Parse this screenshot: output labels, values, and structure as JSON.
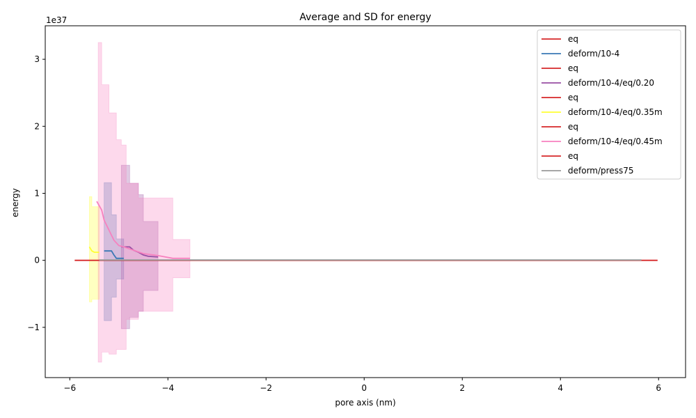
{
  "chart_data": {
    "type": "line",
    "title": "Average and SD for energy",
    "xlabel": "pore axis (nm)",
    "ylabel": "energy",
    "y_scale_label": "1e37",
    "xlim": [
      -6.5,
      6.55
    ],
    "ylim": [
      -1.75,
      3.5
    ],
    "x_ticks": [
      -6,
      -4,
      -2,
      0,
      2,
      4,
      6
    ],
    "x_tick_labels": [
      "−6",
      "−4",
      "−2",
      "0",
      "2",
      "4",
      "6"
    ],
    "y_ticks": [
      -1,
      0,
      1,
      2,
      3
    ],
    "y_tick_labels": [
      "−1",
      "0",
      "1",
      "2",
      "3"
    ],
    "legend_position": "top-right",
    "grid": false,
    "series": [
      {
        "name": "eq",
        "color": "#d62728",
        "x": [
          -5.9,
          5.98
        ],
        "y": [
          0,
          0
        ]
      },
      {
        "name": "deform/10-4",
        "color": "#3a78b5",
        "x": [
          -5.3,
          -5.15,
          -5.1,
          -5.05,
          -4.9
        ],
        "y": [
          0.14,
          0.14,
          0.08,
          0.03,
          0.03
        ],
        "band": {
          "x": [
            -5.3,
            -5.15,
            -5.15,
            -5.05,
            -5.05,
            -4.9
          ],
          "upper": [
            1.16,
            1.16,
            0.68,
            0.68,
            0.32,
            0.32
          ],
          "lower": [
            -0.9,
            -0.9,
            -0.55,
            -0.55,
            -0.28,
            -0.28
          ]
        }
      },
      {
        "name": "eq",
        "color": "#d62728",
        "x": [],
        "y": []
      },
      {
        "name": "deform/10-4/eq/0.20",
        "color": "#984ea3",
        "x": [
          -4.95,
          -4.78,
          -4.7,
          -4.6,
          -4.5,
          -4.4,
          -4.2
        ],
        "y": [
          0.2,
          0.2,
          0.15,
          0.12,
          0.08,
          0.06,
          0.05
        ],
        "band": {
          "x": [
            -4.95,
            -4.78,
            -4.78,
            -4.6,
            -4.6,
            -4.5,
            -4.5,
            -4.2
          ],
          "upper": [
            1.42,
            1.42,
            1.15,
            1.15,
            0.98,
            0.98,
            0.58,
            0.58
          ],
          "lower": [
            -1.02,
            -1.02,
            -0.85,
            -0.85,
            -0.76,
            -0.76,
            -0.45,
            -0.45
          ]
        }
      },
      {
        "name": "eq",
        "color": "#d62728",
        "x": [],
        "y": []
      },
      {
        "name": "deform/10-4/eq/0.35m",
        "color": "#ffff33",
        "x": [
          -5.6,
          -5.55,
          -5.5,
          -5.4
        ],
        "y": [
          0.2,
          0.14,
          0.12,
          0.12
        ],
        "band": {
          "x": [
            -5.6,
            -5.55,
            -5.55,
            -5.4
          ],
          "upper": [
            0.95,
            0.95,
            0.8,
            0.8
          ],
          "lower": [
            -0.62,
            -0.62,
            -0.58,
            -0.58
          ]
        }
      },
      {
        "name": "eq",
        "color": "#d62728",
        "x": [],
        "y": []
      },
      {
        "name": "deform/10-4/eq/0.45m",
        "color": "#f781bf",
        "x": [
          -5.45,
          -5.35,
          -5.3,
          -5.2,
          -5.1,
          -5.0,
          -4.9,
          -4.7,
          -4.5,
          -4.2,
          -3.9,
          -3.55
        ],
        "y": [
          0.88,
          0.75,
          0.6,
          0.45,
          0.3,
          0.22,
          0.2,
          0.15,
          0.1,
          0.07,
          0.03,
          0.03
        ],
        "band": {
          "x": [
            -5.42,
            -5.35,
            -5.35,
            -5.2,
            -5.2,
            -5.05,
            -5.05,
            -4.95,
            -4.95,
            -4.85,
            -4.85,
            -4.6,
            -4.6,
            -4.2,
            -4.2,
            -3.9,
            -3.9,
            -3.55
          ],
          "upper": [
            3.25,
            3.25,
            2.62,
            2.62,
            2.2,
            2.2,
            1.8,
            1.8,
            1.72,
            1.72,
            1.15,
            1.15,
            0.93,
            0.93,
            0.93,
            0.93,
            0.31,
            0.31
          ],
          "lower": [
            -1.52,
            -1.52,
            -1.37,
            -1.37,
            -1.4,
            -1.4,
            -1.33,
            -1.33,
            -1.33,
            -1.33,
            -0.88,
            -0.88,
            -0.76,
            -0.76,
            -0.76,
            -0.76,
            -0.26,
            -0.26
          ]
        }
      },
      {
        "name": "eq",
        "color": "#d62728",
        "x": [],
        "y": []
      },
      {
        "name": "deform/press75",
        "color": "#999999",
        "x": [
          -5.4,
          5.65
        ],
        "y": [
          0.005,
          0.005
        ]
      }
    ]
  }
}
